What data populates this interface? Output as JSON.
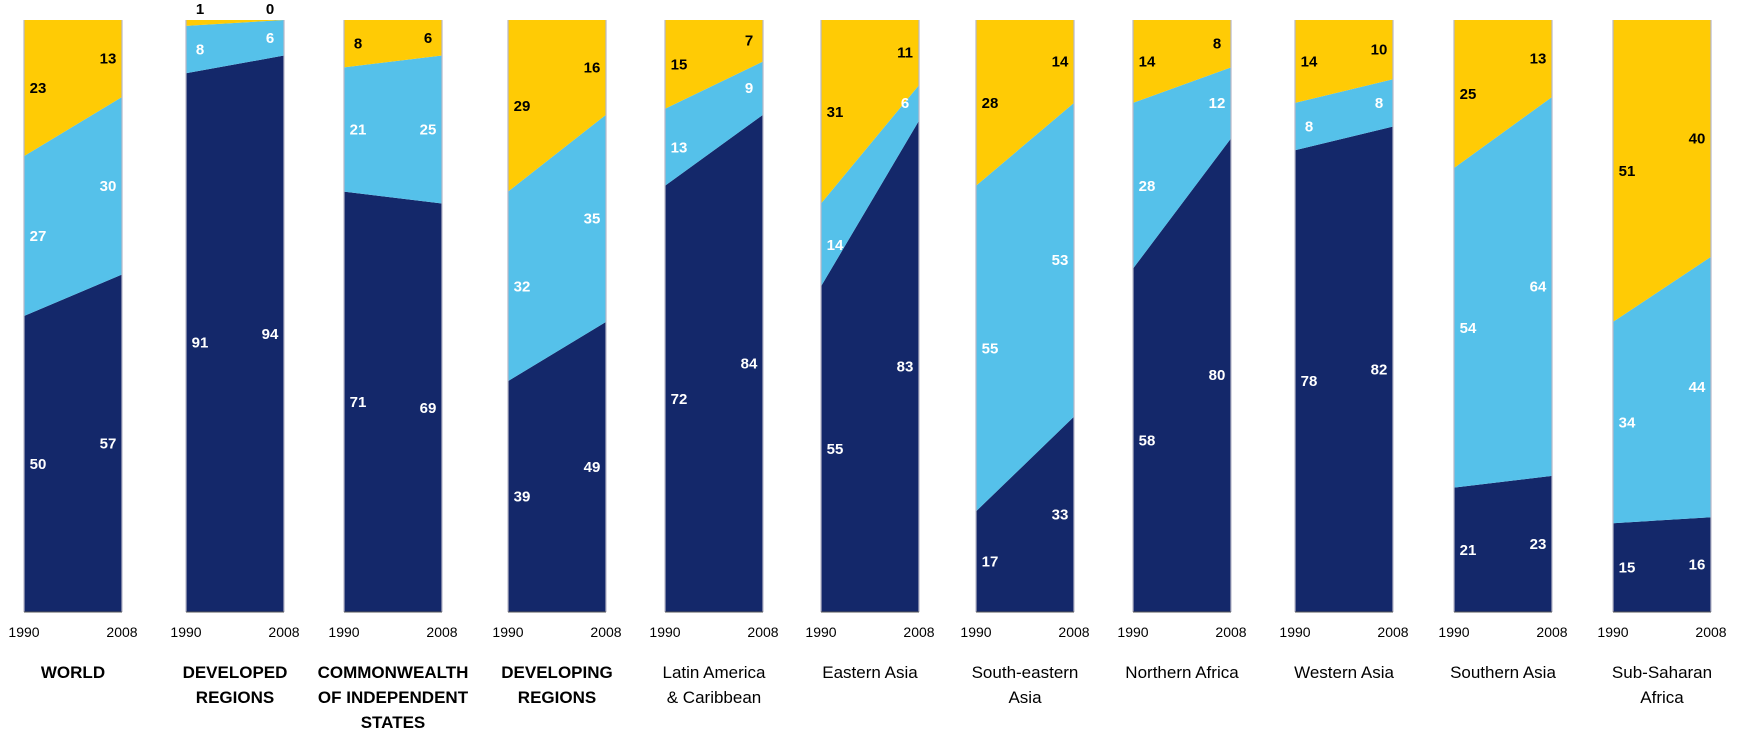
{
  "chart_data": {
    "type": "area",
    "stacking": "percent",
    "x": [
      "1990",
      "2008"
    ],
    "ylim": [
      0,
      100
    ],
    "grid": false,
    "colors": {
      "bottom": "#14286A",
      "middle": "#55C1EA",
      "top": "#FFCB05",
      "label_on_dark": "#ffffff",
      "label_on_yellow": "#000000"
    },
    "panels": [
      {
        "title": [
          "WORLD"
        ],
        "bold": true,
        "values": {
          "1990": [
            50,
            27,
            23
          ],
          "2008": [
            57,
            30,
            13
          ]
        }
      },
      {
        "title": [
          "DEVELOPED",
          "REGIONS"
        ],
        "bold": true,
        "values": {
          "1990": [
            91,
            8,
            1
          ],
          "2008": [
            94,
            6,
            0
          ]
        }
      },
      {
        "title": [
          "COMMONWEALTH",
          "OF INDEPENDENT",
          "STATES"
        ],
        "bold": true,
        "values": {
          "1990": [
            71,
            21,
            8
          ],
          "2008": [
            69,
            25,
            6
          ]
        }
      },
      {
        "title": [
          "DEVELOPING",
          "REGIONS"
        ],
        "bold": true,
        "values": {
          "1990": [
            39,
            32,
            29
          ],
          "2008": [
            49,
            35,
            16
          ]
        }
      },
      {
        "title": [
          "Latin America",
          "& Caribbean"
        ],
        "bold": false,
        "values": {
          "1990": [
            72,
            13,
            15
          ],
          "2008": [
            84,
            9,
            7
          ]
        }
      },
      {
        "title": [
          "Eastern Asia"
        ],
        "bold": false,
        "values": {
          "1990": [
            55,
            14,
            31
          ],
          "2008": [
            83,
            6,
            11
          ]
        }
      },
      {
        "title": [
          "South-eastern",
          "Asia"
        ],
        "bold": false,
        "values": {
          "1990": [
            17,
            55,
            28
          ],
          "2008": [
            33,
            53,
            14
          ]
        }
      },
      {
        "title": [
          "Northern Africa"
        ],
        "bold": false,
        "values": {
          "1990": [
            58,
            28,
            14
          ],
          "2008": [
            80,
            12,
            8
          ]
        }
      },
      {
        "title": [
          "Western Asia"
        ],
        "bold": false,
        "values": {
          "1990": [
            78,
            8,
            14
          ],
          "2008": [
            82,
            8,
            10
          ]
        }
      },
      {
        "title": [
          "Southern Asia"
        ],
        "bold": false,
        "values": {
          "1990": [
            21,
            54,
            25
          ],
          "2008": [
            23,
            64,
            13
          ]
        }
      },
      {
        "title": [
          "Sub-Saharan",
          "Africa"
        ],
        "bold": false,
        "values": {
          "1990": [
            15,
            34,
            51
          ],
          "2008": [
            16,
            44,
            40
          ]
        }
      }
    ]
  }
}
